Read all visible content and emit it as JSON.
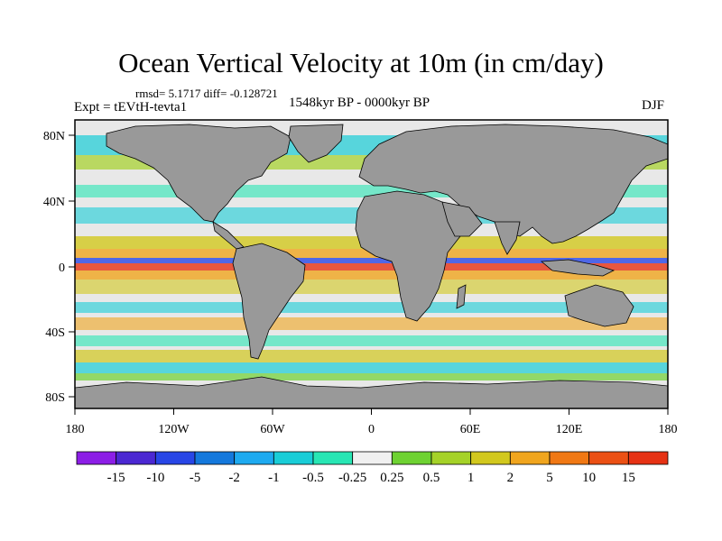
{
  "title": "Ocean Vertical Velocity at 10m (in cm/day)",
  "stats": "rmsd= 5.1717 diff= -0.128721",
  "experiment": "Expt = tEVtH-tevta1",
  "period": "1548kyr BP - 0000kyr BP",
  "season": "DJF",
  "map": {
    "lon_labels": [
      "180",
      "120W",
      "60W",
      "0",
      "60E",
      "120E",
      "180"
    ],
    "lat_labels": [
      "80N",
      "40N",
      "0",
      "40S",
      "80S"
    ],
    "land_color": "#999999"
  },
  "colorbar": {
    "labels": [
      "-15",
      "-10",
      "-5",
      "-2",
      "-1",
      "-0.5",
      "-0.25",
      "0.25",
      "0.5",
      "1",
      "2",
      "5",
      "10",
      "15"
    ],
    "colors": [
      "#8c1ee6",
      "#4b28d2",
      "#2846e6",
      "#1478dc",
      "#1eaaf0",
      "#19cdd7",
      "#28e6b4",
      "#f0f0f0",
      "#6ed232",
      "#a5d228",
      "#d2c81e",
      "#f0a51e",
      "#f07814",
      "#eb5014",
      "#e63214"
    ]
  }
}
